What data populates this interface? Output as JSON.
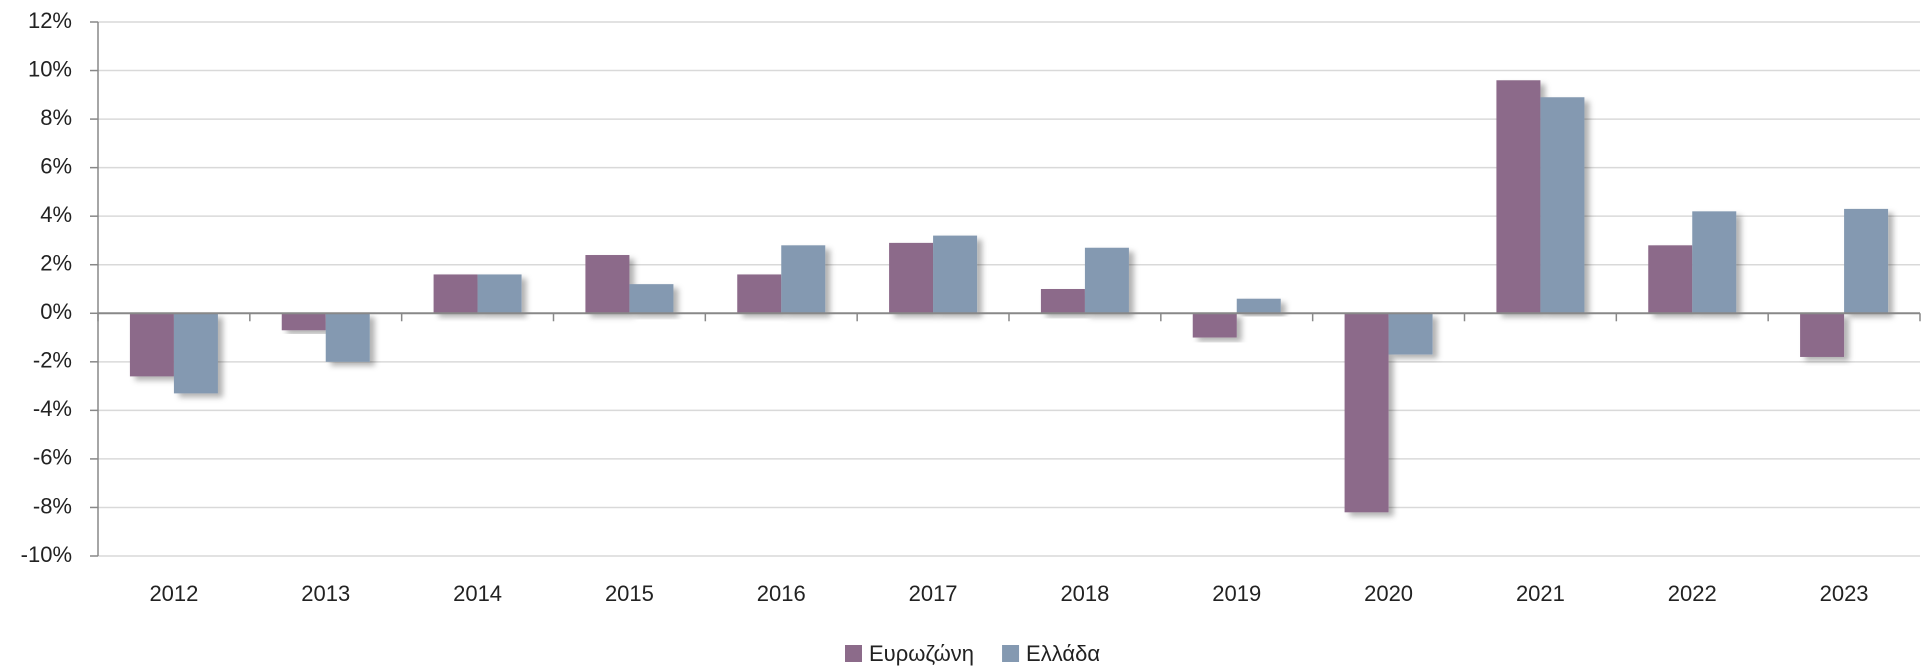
{
  "chart_data": {
    "type": "bar",
    "categories": [
      "2012",
      "2013",
      "2014",
      "2015",
      "2016",
      "2017",
      "2018",
      "2019",
      "2020",
      "2021",
      "2022",
      "2023"
    ],
    "series": [
      {
        "name": "Ευρωζώνη",
        "color": "#8c6b8a",
        "values": [
          -2.6,
          -0.7,
          1.6,
          2.4,
          1.6,
          2.9,
          1.0,
          -1.0,
          -8.2,
          9.6,
          2.8,
          -1.8
        ]
      },
      {
        "name": "Ελλάδα",
        "color": "#8499b1",
        "values": [
          -3.3,
          -2.0,
          1.6,
          1.2,
          2.8,
          3.2,
          2.7,
          0.6,
          -1.7,
          8.9,
          4.2,
          4.3
        ]
      }
    ],
    "ylim": [
      -10,
      12
    ],
    "yticks": [
      {
        "value": -10,
        "label": "-10%"
      },
      {
        "value": -8,
        "label": "-8%"
      },
      {
        "value": -6,
        "label": "-6%"
      },
      {
        "value": -4,
        "label": "-4%"
      },
      {
        "value": -2,
        "label": "-2%"
      },
      {
        "value": 0,
        "label": "0%"
      },
      {
        "value": 2,
        "label": "2%"
      },
      {
        "value": 4,
        "label": "4%"
      },
      {
        "value": 6,
        "label": "6%"
      },
      {
        "value": 8,
        "label": "8%"
      },
      {
        "value": 10,
        "label": "10%"
      },
      {
        "value": 12,
        "label": "12%"
      }
    ],
    "grid": true,
    "legend": "bottom"
  }
}
